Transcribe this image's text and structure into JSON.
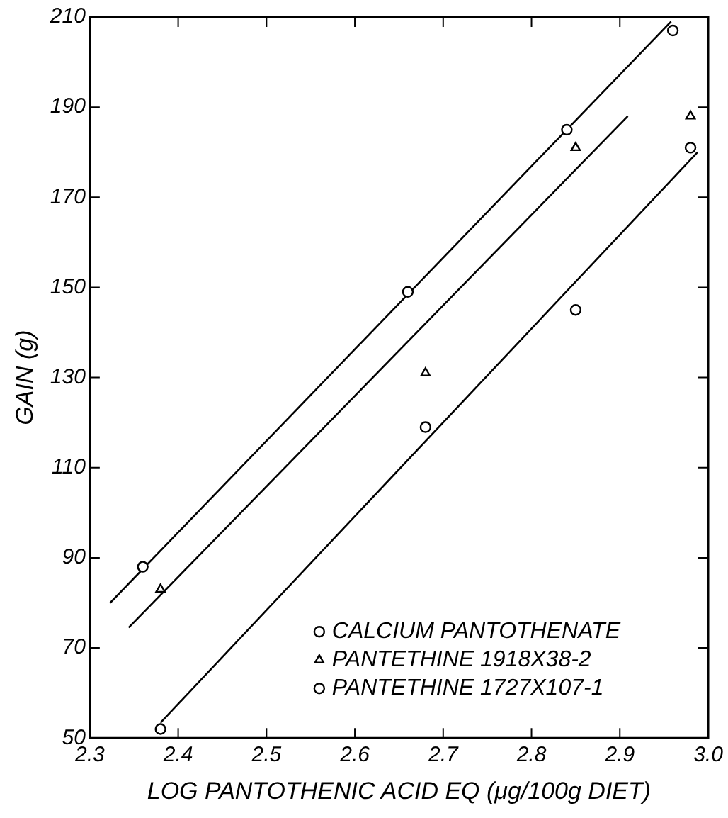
{
  "chart_data": {
    "type": "scatter",
    "xlabel": "LOG PANTOTHENIC ACID EQ (μg/100g DIET)",
    "ylabel": "GAIN (g)",
    "xlim": [
      2.3,
      3.0
    ],
    "xticks": [
      2.3,
      2.4,
      2.5,
      2.6,
      2.7,
      2.8,
      2.9,
      {
        "value": 3.0,
        "label": "3.0"
      }
    ],
    "ylim": [
      50,
      210
    ],
    "yticks": [
      50,
      70,
      90,
      110,
      130,
      150,
      170,
      190,
      210
    ],
    "grid": false,
    "legend": "bottom right",
    "series": [
      {
        "name": "CALCIUM PANTOTHENATE",
        "marker": "circle",
        "color": "#000000",
        "x": [
          2.36,
          2.66,
          2.84,
          2.96
        ],
        "values": [
          88,
          149,
          185,
          207
        ]
      },
      {
        "name": "PANTETHINE 1918X38-2",
        "marker": "triangle",
        "color": "#000000",
        "x": [
          2.38,
          2.68,
          2.85,
          2.98
        ],
        "values": [
          83,
          131,
          181,
          188
        ]
      },
      {
        "name": "PANTETHINE 1727X107-1",
        "marker": "circle",
        "color": "#000000",
        "x": [
          2.38,
          2.68,
          2.85,
          2.98
        ],
        "values": [
          52,
          119,
          145,
          181
        ]
      },
      {
        "type": "line",
        "marker": "none",
        "color": "#000000",
        "x": [
          2.323,
          2.958
        ],
        "values": [
          80,
          209
        ]
      },
      {
        "type": "line",
        "marker": "none",
        "color": "#000000",
        "x": [
          2.344,
          2.909
        ],
        "values": [
          74.5,
          188
        ]
      },
      {
        "type": "line",
        "marker": "none",
        "color": "#000000",
        "x": [
          2.38,
          2.988
        ],
        "values": [
          53.4,
          180
        ]
      }
    ]
  }
}
